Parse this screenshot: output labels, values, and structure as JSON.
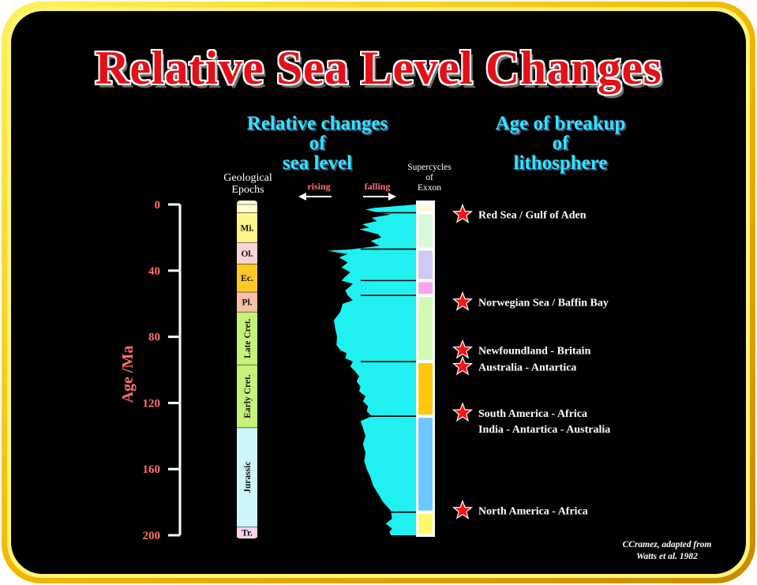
{
  "title": "Relative Sea Level Changes",
  "heading_left": [
    "Relative changes",
    "of",
    "sea level"
  ],
  "heading_right": [
    "Age of breakup",
    "of",
    "lithosphere"
  ],
  "epochs_label": [
    "Geological",
    "Epochs"
  ],
  "supercycles_label": [
    "Supercycles",
    "of",
    "Exxon"
  ],
  "rising_label": "rising",
  "falling_label": "falling",
  "axis": {
    "label": "Age /Ma",
    "ticks": [
      "0",
      "40",
      "80",
      "120",
      "160",
      "200"
    ],
    "min": 0,
    "max": 200
  },
  "epochs": [
    {
      "name": "",
      "start": 0,
      "end": 5,
      "color": "#fffdd0"
    },
    {
      "name": "Mi.",
      "start": 5,
      "end": 23,
      "color": "#fff68a"
    },
    {
      "name": "Ol.",
      "start": 23,
      "end": 36,
      "color": "#fbd4d4"
    },
    {
      "name": "Ec.",
      "start": 36,
      "end": 53,
      "color": "#ffc928"
    },
    {
      "name": "Pl.",
      "start": 53,
      "end": 65,
      "color": "#f8c2a6"
    },
    {
      "name": "Late Cret.",
      "start": 65,
      "end": 97,
      "color": "#c6f27a"
    },
    {
      "name": "Early Cret.",
      "start": 97,
      "end": 135,
      "color": "#c6f27a"
    },
    {
      "name": "Jurassic",
      "start": 135,
      "end": 195,
      "color": "#cdf8fb"
    },
    {
      "name": "Tr.",
      "start": 195,
      "end": 210,
      "color": "#fbd0ee"
    }
  ],
  "supercycles": [
    {
      "start": 0,
      "end": 5,
      "color": "#fffdd0"
    },
    {
      "start": 5,
      "end": 27,
      "color": "#d8fad8"
    },
    {
      "start": 27,
      "end": 46,
      "color": "#d2c8f5"
    },
    {
      "start": 46,
      "end": 55,
      "color": "#f6a6ec"
    },
    {
      "start": 55,
      "end": 95,
      "color": "#d2fab4"
    },
    {
      "start": 95,
      "end": 128,
      "color": "#ffc80a"
    },
    {
      "start": 128,
      "end": 186,
      "color": "#6cc8ff"
    },
    {
      "start": 186,
      "end": 200,
      "color": "#fff86a"
    }
  ],
  "sea_level_curve": [
    [
      0,
      0
    ],
    [
      2,
      65
    ],
    [
      3,
      80
    ],
    [
      5,
      60
    ],
    [
      6,
      40
    ],
    [
      8,
      70
    ],
    [
      10,
      62
    ],
    [
      12,
      85
    ],
    [
      14,
      74
    ],
    [
      15,
      90
    ],
    [
      18,
      60
    ],
    [
      20,
      55
    ],
    [
      22,
      72
    ],
    [
      25,
      58
    ],
    [
      27,
      100
    ],
    [
      28,
      140
    ],
    [
      30,
      108
    ],
    [
      32,
      122
    ],
    [
      35,
      108
    ],
    [
      38,
      118
    ],
    [
      41,
      104
    ],
    [
      43,
      110
    ],
    [
      46,
      118
    ],
    [
      48,
      100
    ],
    [
      52,
      112
    ],
    [
      55,
      108
    ],
    [
      58,
      100
    ],
    [
      60,
      116
    ],
    [
      65,
      120
    ],
    [
      70,
      130
    ],
    [
      75,
      128
    ],
    [
      80,
      125
    ],
    [
      85,
      126
    ],
    [
      88,
      120
    ],
    [
      90,
      110
    ],
    [
      93,
      112
    ],
    [
      95,
      100
    ],
    [
      98,
      104
    ],
    [
      101,
      96
    ],
    [
      104,
      90
    ],
    [
      107,
      94
    ],
    [
      110,
      88
    ],
    [
      113,
      90
    ],
    [
      116,
      80
    ],
    [
      119,
      84
    ],
    [
      122,
      76
    ],
    [
      125,
      78
    ],
    [
      128,
      70
    ],
    [
      131,
      88
    ],
    [
      135,
      84
    ],
    [
      140,
      80
    ],
    [
      145,
      84
    ],
    [
      150,
      80
    ],
    [
      155,
      82
    ],
    [
      160,
      78
    ],
    [
      165,
      72
    ],
    [
      170,
      68
    ],
    [
      175,
      60
    ],
    [
      180,
      52
    ],
    [
      185,
      40
    ],
    [
      190,
      38
    ],
    [
      193,
      48
    ],
    [
      196,
      38
    ],
    [
      198,
      42
    ],
    [
      200,
      40
    ]
  ],
  "events": [
    {
      "age": 6,
      "labels": [
        "Red Sea / Gulf of Aden"
      ]
    },
    {
      "age": 59,
      "labels": [
        "Norwegian Sea / Baffin Bay"
      ]
    },
    {
      "age": 88,
      "labels": [
        "Newfoundland - Britain"
      ]
    },
    {
      "age": 98,
      "labels": [
        "Australia - Antartica"
      ]
    },
    {
      "age": 126,
      "labels": [
        "South America - Africa",
        "India - Antartica - Australia"
      ]
    },
    {
      "age": 185,
      "labels": [
        "North America - Africa"
      ]
    }
  ],
  "credit": [
    "CCramez, adapted from",
    "Watts et al. 1982"
  ],
  "colors": {
    "frame_outer": "#e8a800",
    "frame_inner": "#ffee00",
    "background": "#000000",
    "curve_fill": "#20f0f0",
    "axis_label": "#ff7070",
    "star": "#ff1010"
  }
}
